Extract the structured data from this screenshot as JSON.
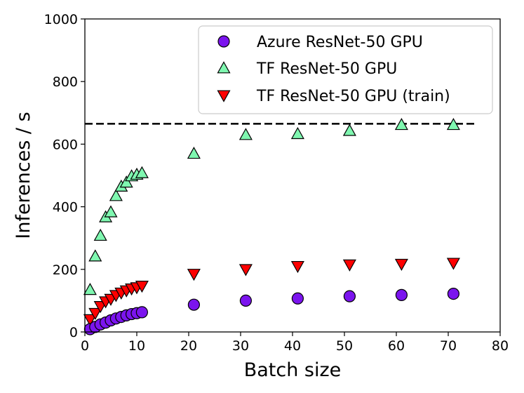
{
  "chart_data": {
    "type": "scatter",
    "title": "",
    "xlabel": "Batch size",
    "ylabel": "Inferences / s",
    "xlim": [
      0,
      80
    ],
    "ylim": [
      0,
      1000
    ],
    "xticks": [
      0,
      10,
      20,
      30,
      40,
      50,
      60,
      70,
      80
    ],
    "yticks": [
      0,
      200,
      400,
      600,
      800,
      1000
    ],
    "grid": false,
    "legend_position": "top-right",
    "reference_line": {
      "style": "dashed",
      "color": "#000000",
      "y": 665,
      "x_range": [
        0,
        75
      ]
    },
    "series": [
      {
        "name": "Azure ResNet-50 GPU",
        "marker": "circle",
        "color": "#7b14ee",
        "x": [
          1,
          2,
          3,
          4,
          5,
          6,
          7,
          8,
          9,
          10,
          11,
          21,
          31,
          41,
          51,
          61,
          71
        ],
        "y": [
          9,
          16,
          24,
          30,
          37,
          43,
          48,
          53,
          57,
          60,
          63,
          87,
          100,
          107,
          114,
          118,
          122
        ]
      },
      {
        "name": "TF ResNet-50 GPU",
        "marker": "triangle-up",
        "color": "#7ff7b0",
        "x": [
          1,
          2,
          3,
          4,
          5,
          6,
          7,
          8,
          9,
          10,
          11,
          21,
          31,
          41,
          51,
          61,
          71
        ],
        "y": [
          135,
          242,
          308,
          367,
          383,
          435,
          465,
          478,
          498,
          503,
          508,
          570,
          630,
          633,
          643,
          662,
          662
        ]
      },
      {
        "name": "TF ResNet-50 GPU (train)",
        "marker": "triangle-down",
        "color": "#ff0000",
        "x": [
          1,
          2,
          3,
          4,
          5,
          6,
          7,
          8,
          9,
          10,
          11,
          21,
          31,
          41,
          51,
          61,
          71
        ],
        "y": [
          40,
          60,
          82,
          97,
          105,
          117,
          125,
          132,
          138,
          142,
          147,
          185,
          200,
          210,
          215,
          217,
          220
        ]
      }
    ]
  }
}
